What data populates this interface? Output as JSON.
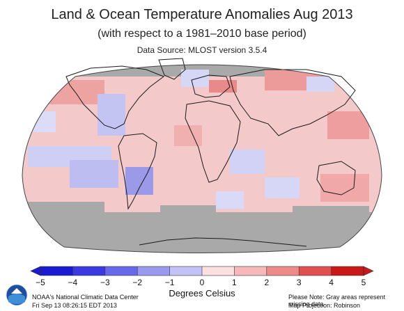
{
  "map": {
    "title": "Land & Ocean Temperature Anomalies Aug 2013",
    "subtitle": "(with respect to a 1981–2010 base period)",
    "data_source": "Data Source: MLOST version 3.5.4",
    "projection": "Robinson",
    "missing_data_color": "#a9a9a9",
    "ocean_base_color": "#f3c9c9",
    "land_outline_color": "#1a1a1a"
  },
  "colorbar": {
    "ticks": [
      "−5",
      "−4",
      "−3",
      "−2",
      "−1",
      "0",
      "1",
      "2",
      "3",
      "4",
      "5"
    ],
    "colors": [
      "#1a1ad0",
      "#3a3ae0",
      "#6868ec",
      "#9999f0",
      "#c2c2f6",
      "#e6e6fb",
      "#fbe0e0",
      "#f6b8b8",
      "#ee8a8a",
      "#e05050",
      "#c81818"
    ],
    "units": "Degrees Celsius"
  },
  "footer": {
    "credit_line1": "NOAA's National Climatic Data Center",
    "credit_line2": "Fri Sep 13 08:26:15 EDT 2013",
    "note_line1": "Please Note: Gray areas represent missing data",
    "note_line2": "Map Projection: Robinson"
  }
}
